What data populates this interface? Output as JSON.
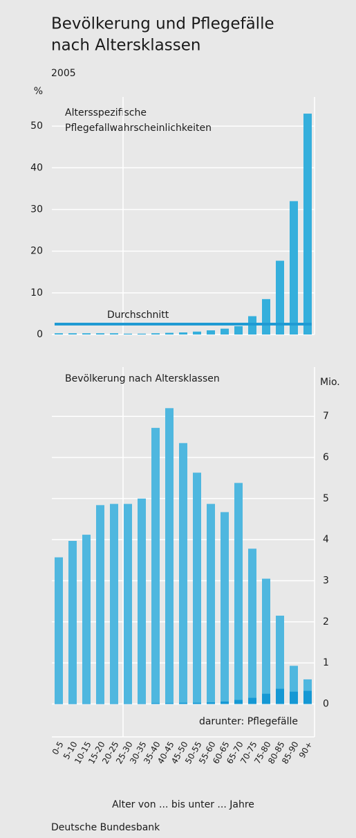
{
  "title_lines": [
    "Bevölkerung und Pflegefälle",
    "nach Altersklassen"
  ],
  "year": "2005",
  "source": "Deutsche Bundesbank",
  "chart_data": [
    {
      "type": "bar",
      "title_lines": [
        "Altersspezifische",
        "Pflegefallwahrscheinlichkeiten"
      ],
      "ylabel": "%",
      "values": [
        0.3,
        0.3,
        0.3,
        0.3,
        0.3,
        0.2,
        0.2,
        0.3,
        0.4,
        0.5,
        0.7,
        1.0,
        1.4,
        2.0,
        4.4,
        8.5,
        17.7,
        32,
        53
      ],
      "color": "#35afdc",
      "average": {
        "label": "Durchschnitt",
        "value": 2.5,
        "color": "#1f9ad3"
      },
      "ylim": [
        0,
        57
      ],
      "yticks": [
        0,
        10,
        20,
        30,
        40,
        50
      ],
      "grid": true
    },
    {
      "type": "overlay_bar",
      "title": "Bevölkerung nach Altersklassen",
      "ylabel": "Mio.",
      "xlabel": "Alter von ... bis unter ... Jahre",
      "categories": [
        "0-5",
        "5-10",
        "10-15",
        "15-20",
        "20-25",
        "25-30",
        "30-35",
        "35-40",
        "40-45",
        "45-50",
        "50-55",
        "55-60",
        "60-65",
        "65-70",
        "70-75",
        "75-80",
        "80-85",
        "85-90",
        "90+"
      ],
      "series": [
        {
          "color": "#4fb7df",
          "values": [
            3.57,
            3.97,
            4.12,
            4.84,
            4.87,
            4.87,
            5.0,
            6.72,
            7.2,
            6.35,
            5.63,
            4.87,
            4.67,
            5.38,
            3.78,
            3.05,
            2.15,
            0.93,
            0.6
          ]
        },
        {
          "name": "darunter: Pflegefälle",
          "color": "#1598d4",
          "values": [
            0.01,
            0.01,
            0.01,
            0.01,
            0.01,
            0.01,
            0.01,
            0.02,
            0.02,
            0.03,
            0.03,
            0.04,
            0.06,
            0.1,
            0.15,
            0.25,
            0.37,
            0.3,
            0.32
          ]
        }
      ],
      "ylim": [
        -0.8,
        8.2
      ],
      "yticks": [
        0,
        1,
        2,
        3,
        4,
        5,
        6,
        7
      ],
      "grid": true
    }
  ]
}
